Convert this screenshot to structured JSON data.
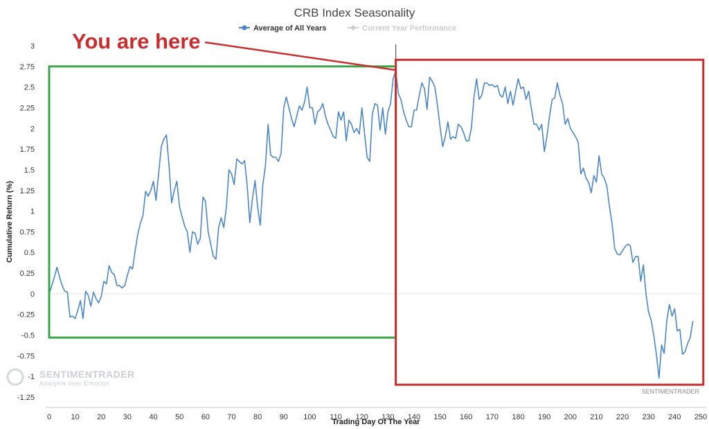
{
  "chart_data": {
    "type": "line",
    "title": "CRB Index Seasonality",
    "xlabel": "Trading Day Of The Year",
    "ylabel": "Cumulative Return (%)",
    "xlim": [
      0,
      250
    ],
    "ylim": [
      -1.25,
      3
    ],
    "x_ticks": [
      0,
      10,
      20,
      30,
      40,
      50,
      60,
      70,
      80,
      90,
      100,
      110,
      120,
      130,
      140,
      150,
      160,
      170,
      180,
      190,
      200,
      210,
      220,
      230,
      240,
      250
    ],
    "y_ticks": [
      {
        "v": 3,
        "label": "3"
      },
      {
        "v": 2.75,
        "label": "2.75"
      },
      {
        "v": 2.5,
        "label": "2.5"
      },
      {
        "v": 2.25,
        "label": "2.25"
      },
      {
        "v": 2,
        "label": "2"
      },
      {
        "v": 1.75,
        "label": "1.75"
      },
      {
        "v": 1.5,
        "label": "1.5"
      },
      {
        "v": 1.25,
        "label": "1.25"
      },
      {
        "v": 1,
        "label": "1"
      },
      {
        "v": 0.75,
        "label": "0.75"
      },
      {
        "v": 0.5,
        "label": "0.5"
      },
      {
        "v": 0.25,
        "label": "0.25"
      },
      {
        "v": 0,
        "label": "0"
      },
      {
        "v": -0.25,
        "label": "-0.25"
      },
      {
        "v": -0.5,
        "label": "-0.5"
      },
      {
        "v": -0.75,
        "label": "-0.75"
      },
      {
        "v": -1,
        "label": "-1"
      },
      {
        "v": -1.25,
        "label": "-1.25"
      }
    ],
    "grid": {
      "zero_line": true
    },
    "legend": {
      "position": "top-center",
      "entries": [
        {
          "label": "Average of All Years",
          "color": "#4a86c5",
          "active": true
        },
        {
          "label": "Current Year Performance",
          "color": "#cccccc",
          "active": false
        }
      ]
    },
    "series": [
      {
        "name": "Average of All Years",
        "color": "#4a86c5",
        "points": [
          [
            0,
            0
          ],
          [
            1,
            0.1
          ],
          [
            2,
            0.2
          ],
          [
            3,
            0.32
          ],
          [
            4,
            0.2
          ],
          [
            5,
            0.1
          ],
          [
            6,
            0.03
          ],
          [
            7,
            0.02
          ],
          [
            8,
            -0.28
          ],
          [
            9,
            -0.27
          ],
          [
            10,
            -0.3
          ],
          [
            11,
            -0.2
          ],
          [
            12,
            -0.08
          ],
          [
            13,
            -0.3
          ],
          [
            14,
            0.03
          ],
          [
            15,
            -0.02
          ],
          [
            16,
            -0.15
          ],
          [
            17,
            0.02
          ],
          [
            18,
            -0.06
          ],
          [
            19,
            -0.11
          ],
          [
            20,
            -0.03
          ],
          [
            21,
            0.15
          ],
          [
            22,
            0.12
          ],
          [
            23,
            0.34
          ],
          [
            24,
            0.26
          ],
          [
            25,
            0.23
          ],
          [
            26,
            0.1
          ],
          [
            27,
            0.1
          ],
          [
            28,
            0.07
          ],
          [
            29,
            0.1
          ],
          [
            30,
            0.22
          ],
          [
            31,
            0.33
          ],
          [
            32,
            0.3
          ],
          [
            33,
            0.52
          ],
          [
            34,
            0.72
          ],
          [
            35,
            0.85
          ],
          [
            36,
            0.95
          ],
          [
            37,
            1.24
          ],
          [
            38,
            1.18
          ],
          [
            39,
            1.25
          ],
          [
            40,
            1.36
          ],
          [
            41,
            1.13
          ],
          [
            42,
            1.45
          ],
          [
            43,
            1.78
          ],
          [
            44,
            1.87
          ],
          [
            45,
            1.92
          ],
          [
            46,
            1.55
          ],
          [
            47,
            1.1
          ],
          [
            48,
            1.25
          ],
          [
            49,
            1.36
          ],
          [
            50,
            1.06
          ],
          [
            51,
            0.93
          ],
          [
            52,
            0.82
          ],
          [
            53,
            0.75
          ],
          [
            54,
            0.5
          ],
          [
            55,
            0.75
          ],
          [
            56,
            0.73
          ],
          [
            57,
            0.6
          ],
          [
            58,
            0.67
          ],
          [
            59,
            1.17
          ],
          [
            60,
            1.12
          ],
          [
            61,
            0.75
          ],
          [
            62,
            0.6
          ],
          [
            63,
            0.45
          ],
          [
            64,
            0.42
          ],
          [
            65,
            0.8
          ],
          [
            66,
            0.92
          ],
          [
            67,
            0.8
          ],
          [
            68,
            1.05
          ],
          [
            69,
            1.5
          ],
          [
            70,
            1.45
          ],
          [
            71,
            1.32
          ],
          [
            72,
            1.63
          ],
          [
            73,
            1.6
          ],
          [
            74,
            1.57
          ],
          [
            75,
            1.61
          ],
          [
            76,
            1.3
          ],
          [
            77,
            0.86
          ],
          [
            78,
            1.15
          ],
          [
            79,
            1.37
          ],
          [
            80,
            1.05
          ],
          [
            81,
            0.83
          ],
          [
            82,
            1.32
          ],
          [
            83,
            1.55
          ],
          [
            84,
            2.05
          ],
          [
            85,
            1.68
          ],
          [
            86,
            1.65
          ],
          [
            87,
            1.65
          ],
          [
            88,
            1.6
          ],
          [
            89,
            1.7
          ],
          [
            90,
            2.25
          ],
          [
            91,
            2.38
          ],
          [
            92,
            2.25
          ],
          [
            93,
            2.12
          ],
          [
            94,
            2.02
          ],
          [
            95,
            2.15
          ],
          [
            96,
            2.27
          ],
          [
            97,
            2.22
          ],
          [
            98,
            2.32
          ],
          [
            99,
            2.5
          ],
          [
            100,
            2.25
          ],
          [
            101,
            2.25
          ],
          [
            102,
            2.05
          ],
          [
            103,
            2.2
          ],
          [
            104,
            2.23
          ],
          [
            105,
            2.3
          ],
          [
            106,
            2.15
          ],
          [
            107,
            2.05
          ],
          [
            108,
            1.98
          ],
          [
            109,
            1.9
          ],
          [
            110,
            1.88
          ],
          [
            111,
            2.2
          ],
          [
            112,
            2.1
          ],
          [
            113,
            2.2
          ],
          [
            114,
            1.85
          ],
          [
            115,
            2.1
          ],
          [
            116,
            2.05
          ],
          [
            117,
            1.95
          ],
          [
            118,
            2.0
          ],
          [
            119,
            1.93
          ],
          [
            120,
            2.25
          ],
          [
            121,
            1.95
          ],
          [
            122,
            1.65
          ],
          [
            123,
            1.6
          ],
          [
            124,
            2.17
          ],
          [
            125,
            2.3
          ],
          [
            126,
            2.28
          ],
          [
            127,
            1.98
          ],
          [
            128,
            2.25
          ],
          [
            129,
            1.93
          ],
          [
            130,
            2.2
          ],
          [
            131,
            2.3
          ],
          [
            132,
            2.6
          ],
          [
            133,
            2.7
          ],
          [
            134,
            2.42
          ],
          [
            135,
            2.35
          ],
          [
            136,
            2.2
          ],
          [
            137,
            2.1
          ],
          [
            138,
            2.02
          ],
          [
            139,
            2.02
          ],
          [
            140,
            2.22
          ],
          [
            141,
            2.22
          ],
          [
            142,
            2.4
          ],
          [
            143,
            2.55
          ],
          [
            144,
            2.48
          ],
          [
            145,
            2.23
          ],
          [
            146,
            2.62
          ],
          [
            147,
            2.57
          ],
          [
            148,
            2.5
          ],
          [
            149,
            2.28
          ],
          [
            150,
            2.02
          ],
          [
            151,
            1.78
          ],
          [
            152,
            1.9
          ],
          [
            153,
            2.08
          ],
          [
            154,
            1.87
          ],
          [
            155,
            1.9
          ],
          [
            156,
            1.88
          ],
          [
            157,
            2.05
          ],
          [
            158,
            2.02
          ],
          [
            159,
            1.95
          ],
          [
            160,
            1.85
          ],
          [
            161,
            1.85
          ],
          [
            162,
            2.0
          ],
          [
            163,
            2.37
          ],
          [
            164,
            2.6
          ],
          [
            165,
            2.35
          ],
          [
            166,
            2.4
          ],
          [
            167,
            2.55
          ],
          [
            168,
            2.55
          ],
          [
            169,
            2.52
          ],
          [
            170,
            2.53
          ],
          [
            171,
            2.5
          ],
          [
            172,
            2.52
          ],
          [
            173,
            2.4
          ],
          [
            174,
            2.38
          ],
          [
            175,
            2.5
          ],
          [
            176,
            2.3
          ],
          [
            177,
            2.45
          ],
          [
            178,
            2.28
          ],
          [
            179,
            2.45
          ],
          [
            180,
            2.6
          ],
          [
            181,
            2.48
          ],
          [
            182,
            2.5
          ],
          [
            183,
            2.35
          ],
          [
            184,
            2.45
          ],
          [
            185,
            2.25
          ],
          [
            186,
            2.05
          ],
          [
            187,
            2.05
          ],
          [
            188,
            1.98
          ],
          [
            189,
            2.05
          ],
          [
            190,
            1.72
          ],
          [
            191,
            1.9
          ],
          [
            192,
            2.15
          ],
          [
            193,
            2.35
          ],
          [
            194,
            2.37
          ],
          [
            195,
            2.55
          ],
          [
            196,
            2.4
          ],
          [
            197,
            2.3
          ],
          [
            198,
            2.05
          ],
          [
            199,
            2.12
          ],
          [
            200,
            2.0
          ],
          [
            201,
            1.95
          ],
          [
            202,
            1.9
          ],
          [
            203,
            1.83
          ],
          [
            204,
            1.45
          ],
          [
            205,
            1.52
          ],
          [
            206,
            1.4
          ],
          [
            207,
            1.35
          ],
          [
            208,
            1.22
          ],
          [
            209,
            1.43
          ],
          [
            210,
            1.35
          ],
          [
            211,
            1.67
          ],
          [
            212,
            1.45
          ],
          [
            213,
            1.4
          ],
          [
            214,
            1.3
          ],
          [
            215,
            1.05
          ],
          [
            216,
            0.85
          ],
          [
            217,
            0.55
          ],
          [
            218,
            0.48
          ],
          [
            219,
            0.47
          ],
          [
            220,
            0.52
          ],
          [
            221,
            0.57
          ],
          [
            222,
            0.6
          ],
          [
            223,
            0.58
          ],
          [
            224,
            0.38
          ],
          [
            225,
            0.45
          ],
          [
            226,
            0.45
          ],
          [
            227,
            0.15
          ],
          [
            228,
            0.35
          ],
          [
            229,
            0.0
          ],
          [
            230,
            -0.22
          ],
          [
            231,
            -0.32
          ],
          [
            232,
            -0.5
          ],
          [
            233,
            -0.73
          ],
          [
            234,
            -1.02
          ],
          [
            235,
            -0.62
          ],
          [
            236,
            -0.72
          ],
          [
            237,
            -0.32
          ],
          [
            238,
            -0.13
          ],
          [
            239,
            -0.27
          ],
          [
            240,
            -0.18
          ],
          [
            241,
            -0.45
          ],
          [
            242,
            -0.43
          ],
          [
            243,
            -0.73
          ],
          [
            244,
            -0.7
          ],
          [
            245,
            -0.6
          ],
          [
            246,
            -0.53
          ],
          [
            247,
            -0.33
          ]
        ]
      }
    ],
    "current_day_marker": {
      "x": 133
    },
    "annotations": [
      {
        "text": "You are here",
        "color": "#c82e2e"
      }
    ],
    "regions": [
      {
        "color": "#3aa64a",
        "x_range": [
          0,
          133
        ],
        "y_range": [
          -0.53,
          2.75
        ]
      },
      {
        "color": "#c82e2e",
        "x_range": [
          133,
          251
        ],
        "y_range": [
          -1.1,
          2.83
        ]
      }
    ],
    "watermark": {
      "name": "SENTIMENTRADER",
      "tagline": "Analysis over Emotion"
    },
    "credit": "SENTIMENTRADER"
  }
}
